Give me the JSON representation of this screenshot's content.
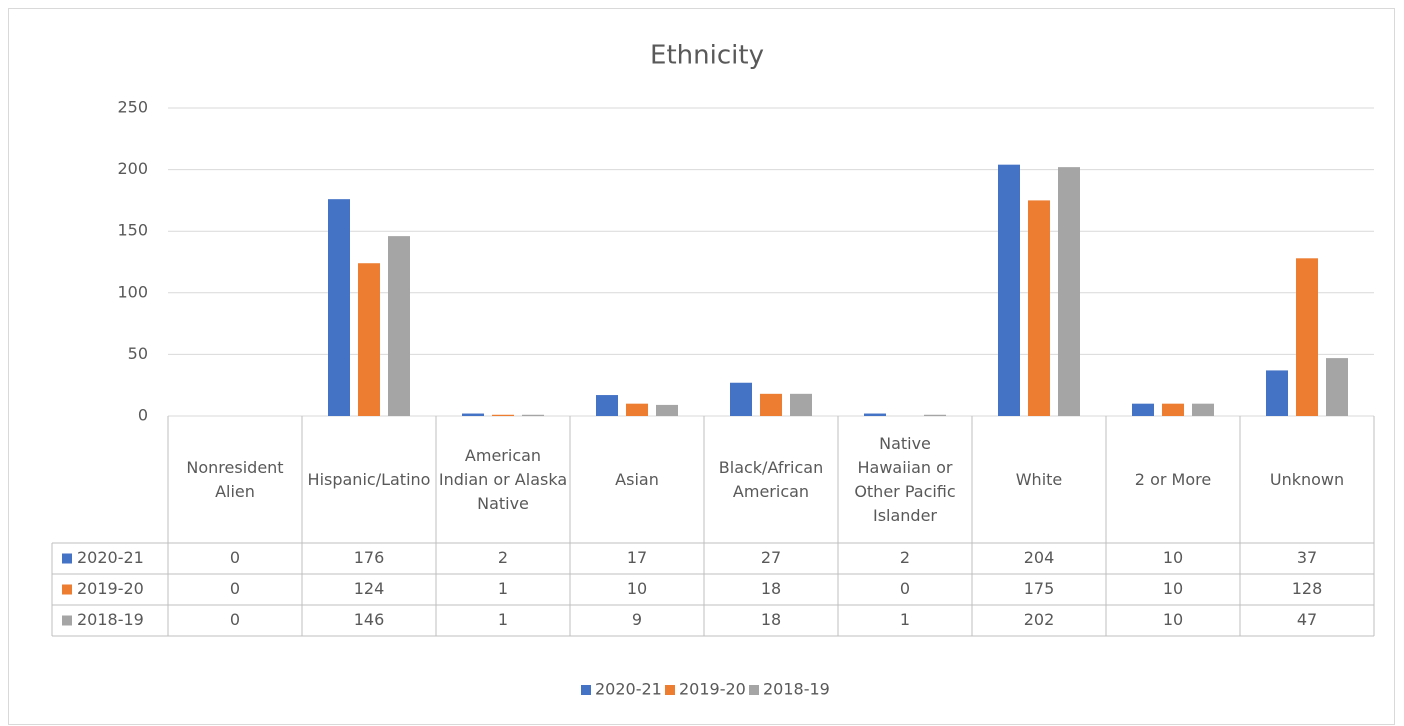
{
  "chart_data": {
    "type": "bar",
    "title": "Ethnicity",
    "categories": [
      "Nonresident Alien",
      "Hispanic/Latino",
      "American Indian or Alaska Native",
      "Asian",
      "Black/African American",
      "Native Hawaiian or Other Pacific Islander",
      "White",
      "2 or More",
      "Unknown"
    ],
    "series": [
      {
        "name": "2020-21",
        "color": "#4472c4",
        "values": [
          0,
          176,
          2,
          17,
          27,
          2,
          204,
          10,
          37
        ]
      },
      {
        "name": "2019-20",
        "color": "#ed7d31",
        "values": [
          0,
          124,
          1,
          10,
          18,
          0,
          175,
          10,
          128
        ]
      },
      {
        "name": "2018-19",
        "color": "#a5a5a5",
        "values": [
          0,
          146,
          1,
          9,
          18,
          1,
          202,
          10,
          47
        ]
      }
    ],
    "ylim": [
      0,
      250
    ],
    "yticks": [
      0,
      50,
      100,
      150,
      200,
      250
    ],
    "grid": true,
    "legend": "bottom",
    "data_table": true
  }
}
